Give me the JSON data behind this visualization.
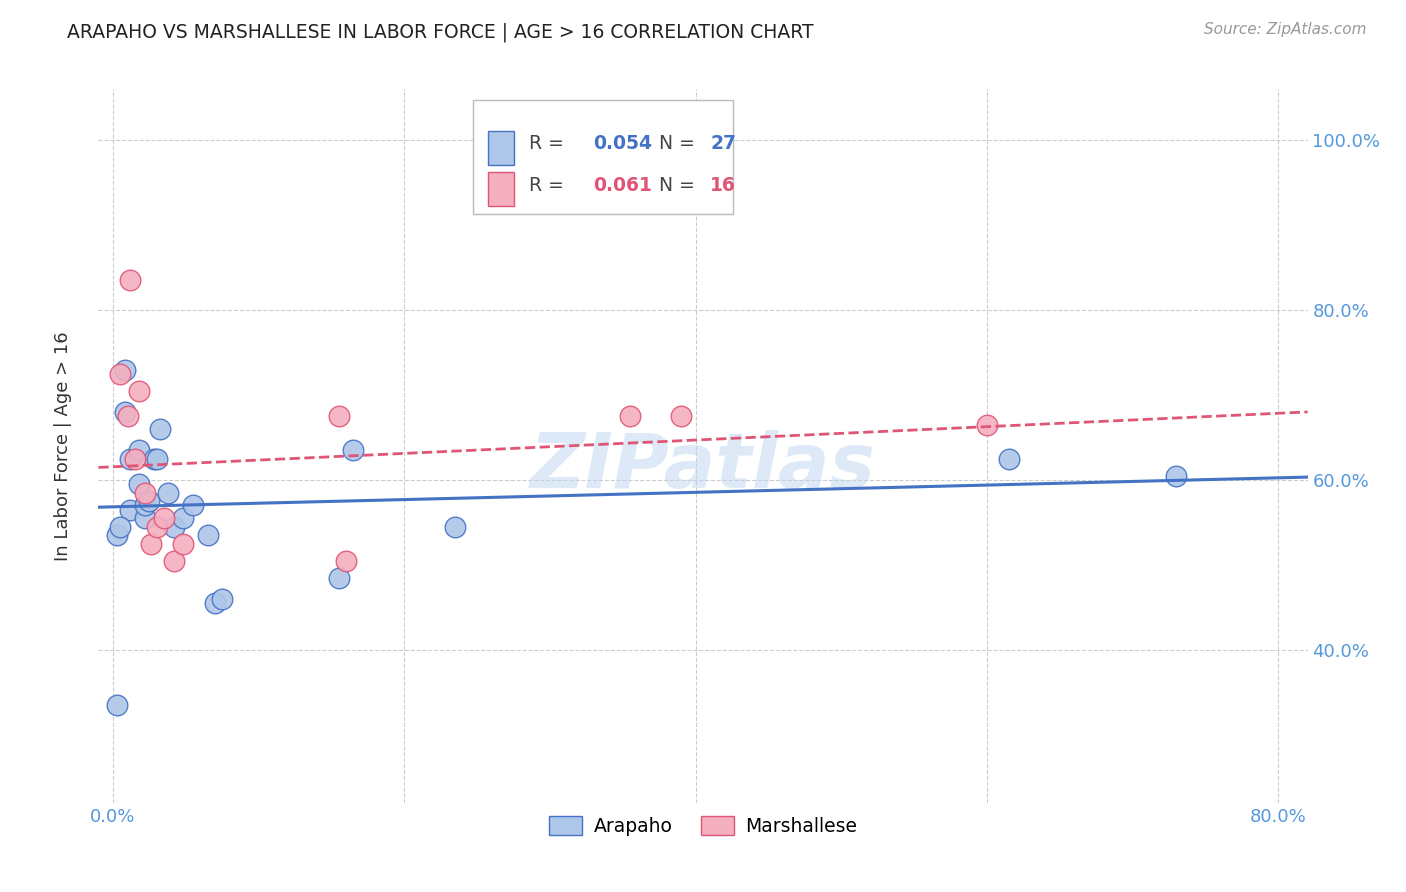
{
  "title": "ARAPAHO VS MARSHALLESE IN LABOR FORCE | AGE > 16 CORRELATION CHART",
  "source": "Source: ZipAtlas.com",
  "ylabel": "In Labor Force | Age > 16",
  "xlim": [
    -0.01,
    0.82
  ],
  "ylim": [
    0.22,
    1.06
  ],
  "arapaho_R": "0.054",
  "arapaho_N": "27",
  "marshallese_R": "0.061",
  "marshallese_N": "16",
  "arapaho_color": "#aec6e8",
  "arapaho_line_color": "#4472c4",
  "marshallese_color": "#f4afc0",
  "marshallese_line_color": "#e05575",
  "watermark": "ZIPatlas",
  "arapaho_x": [
    0.003,
    0.008,
    0.008,
    0.012,
    0.012,
    0.018,
    0.018,
    0.022,
    0.022,
    0.025,
    0.028,
    0.03,
    0.032,
    0.038,
    0.042,
    0.048,
    0.055,
    0.065,
    0.07,
    0.075,
    0.155,
    0.165,
    0.235,
    0.003,
    0.615,
    0.73,
    0.005
  ],
  "arapaho_y": [
    0.335,
    0.68,
    0.73,
    0.565,
    0.625,
    0.635,
    0.595,
    0.555,
    0.57,
    0.575,
    0.625,
    0.625,
    0.66,
    0.585,
    0.545,
    0.555,
    0.57,
    0.535,
    0.455,
    0.46,
    0.485,
    0.635,
    0.545,
    0.535,
    0.625,
    0.605,
    0.545
  ],
  "marshallese_x": [
    0.005,
    0.01,
    0.012,
    0.015,
    0.018,
    0.022,
    0.026,
    0.03,
    0.035,
    0.042,
    0.048,
    0.155,
    0.16,
    0.355,
    0.39,
    0.6
  ],
  "marshallese_y": [
    0.725,
    0.675,
    0.835,
    0.625,
    0.705,
    0.585,
    0.525,
    0.545,
    0.555,
    0.505,
    0.525,
    0.675,
    0.505,
    0.675,
    0.675,
    0.665
  ],
  "grid_color": "#cccccc",
  "background_color": "#ffffff",
  "ytick_values": [
    0.4,
    0.6,
    0.8,
    1.0
  ],
  "ytick_labels": [
    "40.0%",
    "60.0%",
    "80.0%",
    "100.0%"
  ],
  "xtick_values": [
    0.0,
    0.8
  ],
  "xtick_labels": [
    "0.0%",
    "80.0%"
  ],
  "vgrid_values": [
    0.0,
    0.2,
    0.4,
    0.6,
    0.8
  ],
  "hgrid_values": [
    0.4,
    0.6,
    0.8,
    1.0
  ],
  "tick_color": "#5599dd"
}
